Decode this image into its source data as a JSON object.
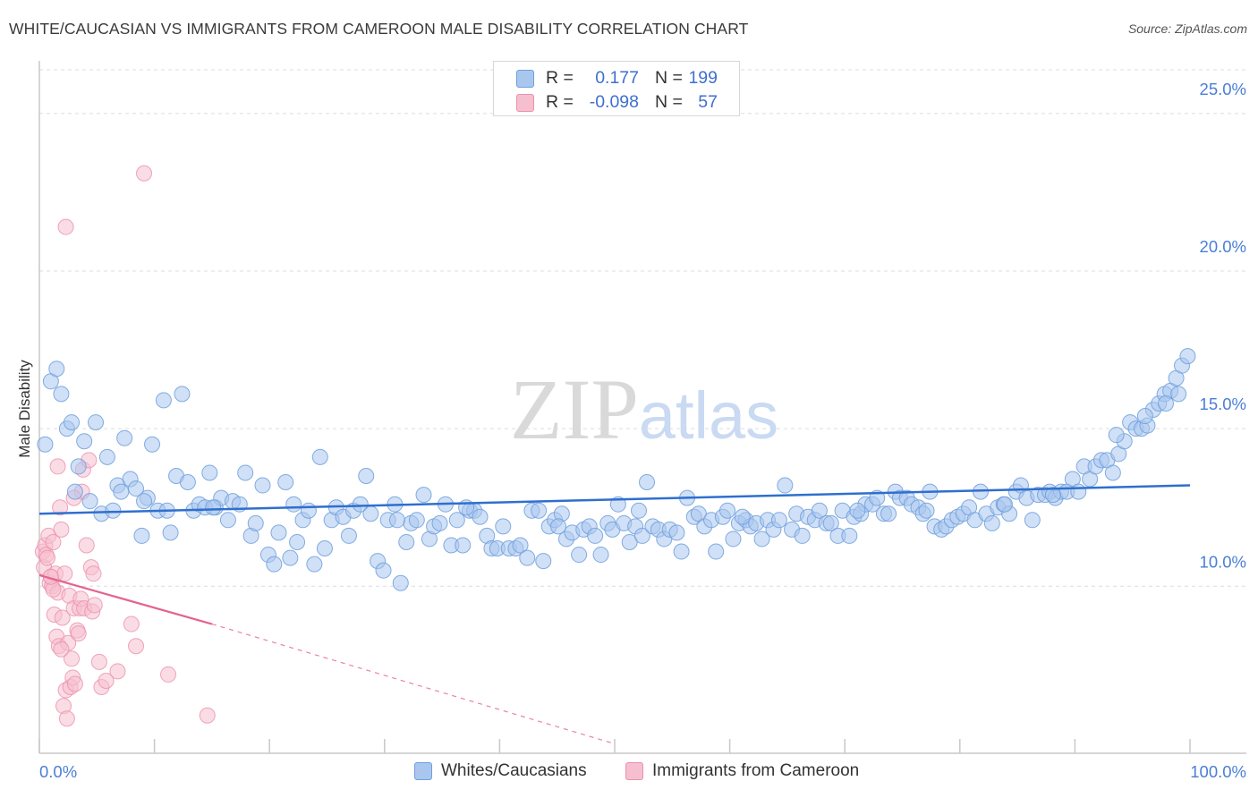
{
  "header": {
    "title": "WHITE/CAUCASIAN VS IMMIGRANTS FROM CAMEROON MALE DISABILITY CORRELATION CHART",
    "source": "Source: ZipAtlas.com"
  },
  "legend": {
    "series1": {
      "r_label": "R =",
      "r_value": "0.177",
      "n_label": "N =",
      "n_value": "199"
    },
    "series2": {
      "r_label": "R =",
      "r_value": "-0.098",
      "n_label": "N =",
      "n_value": "57"
    }
  },
  "bottom_legend": {
    "series1_label": "Whites/Caucasians",
    "series2_label": "Immigrants from Cameroon"
  },
  "watermark": {
    "part1": "ZIP",
    "part2": "atlas"
  },
  "colors": {
    "blue_fill": "#a9c7ee",
    "blue_stroke": "#6f9fdc",
    "blue_line": "#2f6fcf",
    "pink_fill": "#f6bfd0",
    "pink_stroke": "#ec8fad",
    "pink_line": "#e5638f",
    "tick_label": "#4a7fd6",
    "grid": "#dcdcdc",
    "axis": "#c8c8c8"
  },
  "chart_data": {
    "type": "scatter",
    "title": "WHITE/CAUCASIAN VS IMMIGRANTS FROM CAMEROON MALE DISABILITY CORRELATION CHART",
    "xlabel": "",
    "ylabel": "Male Disability",
    "xlim": [
      0,
      100
    ],
    "ylim": [
      4.7,
      26.5
    ],
    "x_tick_labels": {
      "left": "0.0%",
      "right": "100.0%"
    },
    "y_ticks": [
      {
        "value": 10,
        "label": "10.0%"
      },
      {
        "value": 15,
        "label": "15.0%"
      },
      {
        "value": 20,
        "label": "20.0%"
      },
      {
        "value": 25,
        "label": "25.0%"
      }
    ],
    "x_minor_ticks": [
      0,
      10,
      20,
      30,
      40,
      50,
      60,
      70,
      80,
      90,
      100
    ],
    "series": [
      {
        "name": "Whites/Caucasians",
        "r": 0.177,
        "n": 199,
        "trend": {
          "x": [
            0,
            100
          ],
          "y": [
            12.3,
            13.2
          ]
        },
        "points": [
          [
            0.5,
            14.5
          ],
          [
            1.0,
            16.5
          ],
          [
            1.5,
            16.9
          ],
          [
            1.9,
            16.1
          ],
          [
            2.4,
            15.0
          ],
          [
            2.8,
            15.2
          ],
          [
            3.4,
            13.8
          ],
          [
            3.9,
            14.6
          ],
          [
            4.4,
            12.7
          ],
          [
            4.9,
            15.2
          ],
          [
            5.4,
            12.3
          ],
          [
            5.9,
            14.1
          ],
          [
            6.4,
            12.4
          ],
          [
            6.8,
            13.2
          ],
          [
            7.4,
            14.7
          ],
          [
            7.9,
            13.4
          ],
          [
            8.4,
            13.1
          ],
          [
            8.9,
            11.6
          ],
          [
            9.4,
            12.8
          ],
          [
            9.8,
            14.5
          ],
          [
            10.3,
            12.4
          ],
          [
            10.8,
            15.9
          ],
          [
            11.4,
            11.7
          ],
          [
            11.9,
            13.5
          ],
          [
            12.4,
            16.1
          ],
          [
            12.9,
            13.3
          ],
          [
            13.4,
            12.4
          ],
          [
            13.9,
            12.6
          ],
          [
            14.4,
            12.5
          ],
          [
            14.8,
            13.6
          ],
          [
            15.3,
            12.5
          ],
          [
            15.8,
            12.8
          ],
          [
            16.4,
            12.1
          ],
          [
            16.8,
            12.7
          ],
          [
            17.4,
            12.6
          ],
          [
            17.9,
            13.6
          ],
          [
            18.4,
            11.6
          ],
          [
            18.8,
            12.0
          ],
          [
            19.4,
            13.2
          ],
          [
            19.9,
            11.0
          ],
          [
            20.4,
            10.7
          ],
          [
            20.8,
            11.7
          ],
          [
            21.4,
            13.3
          ],
          [
            21.8,
            10.9
          ],
          [
            22.4,
            11.4
          ],
          [
            22.9,
            12.1
          ],
          [
            23.4,
            12.4
          ],
          [
            23.9,
            10.7
          ],
          [
            24.4,
            14.1
          ],
          [
            24.8,
            11.2
          ],
          [
            25.4,
            12.1
          ],
          [
            25.8,
            12.5
          ],
          [
            26.4,
            12.2
          ],
          [
            26.9,
            11.6
          ],
          [
            27.3,
            12.4
          ],
          [
            27.9,
            12.6
          ],
          [
            28.4,
            13.5
          ],
          [
            28.8,
            12.3
          ],
          [
            29.4,
            10.8
          ],
          [
            29.9,
            10.5
          ],
          [
            30.3,
            12.1
          ],
          [
            30.9,
            12.6
          ],
          [
            31.4,
            10.1
          ],
          [
            31.9,
            11.4
          ],
          [
            32.3,
            12.0
          ],
          [
            32.8,
            12.1
          ],
          [
            33.4,
            12.9
          ],
          [
            33.9,
            11.5
          ],
          [
            34.3,
            11.9
          ],
          [
            34.8,
            12.0
          ],
          [
            35.3,
            12.6
          ],
          [
            35.8,
            11.3
          ],
          [
            36.3,
            12.1
          ],
          [
            36.8,
            11.3
          ],
          [
            37.4,
            12.4
          ],
          [
            37.8,
            12.4
          ],
          [
            38.3,
            12.2
          ],
          [
            38.9,
            11.6
          ],
          [
            39.3,
            11.2
          ],
          [
            39.8,
            11.2
          ],
          [
            40.3,
            11.9
          ],
          [
            40.8,
            11.2
          ],
          [
            41.4,
            11.2
          ],
          [
            41.8,
            11.3
          ],
          [
            42.4,
            10.9
          ],
          [
            42.8,
            12.4
          ],
          [
            43.4,
            12.4
          ],
          [
            43.8,
            10.8
          ],
          [
            44.3,
            11.9
          ],
          [
            44.8,
            12.1
          ],
          [
            45.4,
            12.3
          ],
          [
            45.8,
            11.5
          ],
          [
            46.3,
            11.7
          ],
          [
            46.9,
            11.0
          ],
          [
            47.3,
            11.8
          ],
          [
            47.8,
            11.9
          ],
          [
            48.3,
            11.6
          ],
          [
            48.8,
            11.0
          ],
          [
            49.4,
            12.0
          ],
          [
            49.8,
            11.8
          ],
          [
            50.3,
            12.6
          ],
          [
            50.8,
            12.0
          ],
          [
            51.3,
            11.4
          ],
          [
            51.8,
            11.9
          ],
          [
            52.4,
            11.6
          ],
          [
            52.8,
            13.3
          ],
          [
            53.3,
            11.9
          ],
          [
            53.8,
            11.8
          ],
          [
            54.3,
            11.5
          ],
          [
            54.8,
            11.8
          ],
          [
            55.4,
            11.7
          ],
          [
            55.8,
            11.1
          ],
          [
            56.3,
            12.8
          ],
          [
            56.9,
            12.2
          ],
          [
            57.3,
            12.3
          ],
          [
            57.8,
            11.9
          ],
          [
            58.4,
            12.1
          ],
          [
            58.8,
            11.1
          ],
          [
            59.4,
            12.2
          ],
          [
            59.8,
            12.4
          ],
          [
            60.3,
            11.5
          ],
          [
            60.8,
            12.0
          ],
          [
            61.4,
            12.1
          ],
          [
            61.8,
            11.9
          ],
          [
            62.3,
            12.0
          ],
          [
            62.8,
            11.5
          ],
          [
            63.3,
            12.1
          ],
          [
            63.8,
            11.8
          ],
          [
            64.3,
            12.1
          ],
          [
            64.8,
            13.2
          ],
          [
            65.4,
            11.8
          ],
          [
            65.8,
            12.3
          ],
          [
            66.3,
            11.6
          ],
          [
            66.8,
            12.2
          ],
          [
            67.4,
            12.1
          ],
          [
            67.8,
            12.4
          ],
          [
            68.4,
            12.0
          ],
          [
            68.8,
            12.0
          ],
          [
            69.4,
            11.6
          ],
          [
            69.8,
            12.4
          ],
          [
            70.4,
            11.6
          ],
          [
            70.8,
            12.2
          ],
          [
            71.4,
            12.3
          ],
          [
            71.8,
            12.6
          ],
          [
            72.4,
            12.6
          ],
          [
            72.8,
            12.8
          ],
          [
            73.4,
            12.3
          ],
          [
            73.8,
            12.3
          ],
          [
            74.4,
            13.0
          ],
          [
            74.8,
            12.8
          ],
          [
            75.4,
            12.8
          ],
          [
            75.8,
            12.6
          ],
          [
            76.4,
            12.5
          ],
          [
            76.8,
            12.3
          ],
          [
            77.4,
            13.0
          ],
          [
            77.8,
            11.9
          ],
          [
            78.4,
            11.8
          ],
          [
            78.8,
            11.9
          ],
          [
            79.3,
            12.1
          ],
          [
            79.8,
            12.2
          ],
          [
            80.3,
            12.3
          ],
          [
            80.8,
            12.5
          ],
          [
            81.3,
            12.1
          ],
          [
            81.8,
            13.0
          ],
          [
            82.3,
            12.3
          ],
          [
            82.8,
            12.0
          ],
          [
            83.3,
            12.5
          ],
          [
            83.8,
            12.6
          ],
          [
            84.3,
            12.3
          ],
          [
            84.9,
            13.0
          ],
          [
            85.3,
            13.2
          ],
          [
            85.8,
            12.8
          ],
          [
            86.3,
            12.1
          ],
          [
            86.8,
            12.9
          ],
          [
            87.4,
            12.9
          ],
          [
            87.8,
            13.0
          ],
          [
            88.3,
            12.8
          ],
          [
            88.8,
            13.0
          ],
          [
            89.3,
            13.0
          ],
          [
            89.8,
            13.4
          ],
          [
            90.3,
            13.0
          ],
          [
            90.8,
            13.8
          ],
          [
            91.3,
            13.4
          ],
          [
            91.8,
            13.8
          ],
          [
            92.3,
            14.0
          ],
          [
            92.8,
            14.0
          ],
          [
            93.3,
            13.6
          ],
          [
            93.8,
            14.2
          ],
          [
            94.3,
            14.6
          ],
          [
            94.8,
            15.2
          ],
          [
            95.3,
            15.0
          ],
          [
            95.8,
            15.0
          ],
          [
            96.3,
            15.1
          ],
          [
            96.8,
            15.6
          ],
          [
            97.3,
            15.8
          ],
          [
            97.8,
            16.1
          ],
          [
            98.3,
            16.2
          ],
          [
            98.8,
            16.6
          ],
          [
            99.3,
            17.0
          ],
          [
            99.8,
            17.3
          ],
          [
            97.9,
            15.8
          ],
          [
            99.0,
            16.1
          ],
          [
            96.1,
            15.4
          ],
          [
            93.6,
            14.8
          ],
          [
            88.1,
            12.9
          ],
          [
            83.9,
            12.6
          ],
          [
            77.1,
            12.4
          ],
          [
            71.1,
            12.4
          ],
          [
            61.1,
            12.2
          ],
          [
            52.1,
            12.4
          ],
          [
            45.1,
            11.9
          ],
          [
            37.1,
            12.5
          ],
          [
            31.1,
            12.1
          ],
          [
            22.1,
            12.6
          ],
          [
            15.1,
            12.5
          ],
          [
            11.1,
            12.4
          ],
          [
            9.1,
            12.7
          ],
          [
            7.1,
            13.0
          ],
          [
            3.1,
            13.0
          ]
        ]
      },
      {
        "name": "Immigrants from Cameroon",
        "r": -0.098,
        "n": 57,
        "trend": {
          "x": [
            0,
            15
          ],
          "y": [
            10.35,
            8.8
          ],
          "dashed_to": {
            "x": 50,
            "y": 5.0
          }
        },
        "points": [
          [
            0.3,
            11.1
          ],
          [
            0.4,
            10.6
          ],
          [
            0.5,
            11.3
          ],
          [
            0.6,
            11.0
          ],
          [
            0.7,
            10.9
          ],
          [
            0.8,
            11.6
          ],
          [
            0.9,
            10.1
          ],
          [
            1.0,
            10.3
          ],
          [
            1.1,
            10.0
          ],
          [
            1.2,
            11.4
          ],
          [
            1.3,
            9.1
          ],
          [
            1.4,
            10.4
          ],
          [
            1.5,
            8.4
          ],
          [
            1.6,
            9.8
          ],
          [
            1.7,
            8.1
          ],
          [
            1.8,
            12.5
          ],
          [
            1.9,
            11.8
          ],
          [
            2.0,
            9.0
          ],
          [
            2.1,
            6.2
          ],
          [
            2.2,
            10.4
          ],
          [
            2.3,
            6.7
          ],
          [
            2.4,
            5.8
          ],
          [
            2.5,
            8.2
          ],
          [
            2.6,
            9.7
          ],
          [
            2.7,
            6.8
          ],
          [
            2.8,
            7.7
          ],
          [
            2.9,
            7.1
          ],
          [
            3.0,
            9.3
          ],
          [
            3.1,
            6.9
          ],
          [
            3.3,
            8.6
          ],
          [
            3.5,
            9.3
          ],
          [
            3.6,
            9.6
          ],
          [
            3.7,
            13.0
          ],
          [
            3.8,
            13.7
          ],
          [
            3.9,
            9.3
          ],
          [
            4.1,
            11.3
          ],
          [
            4.3,
            14.0
          ],
          [
            4.5,
            10.6
          ],
          [
            4.6,
            9.2
          ],
          [
            4.7,
            10.4
          ],
          [
            4.8,
            9.4
          ],
          [
            5.2,
            7.6
          ],
          [
            5.4,
            6.8
          ],
          [
            1.6,
            13.8
          ],
          [
            2.3,
            21.4
          ],
          [
            3.0,
            12.8
          ],
          [
            1.2,
            9.9
          ],
          [
            1.9,
            8.0
          ],
          [
            3.4,
            8.5
          ],
          [
            5.8,
            7.0
          ],
          [
            6.8,
            7.3
          ],
          [
            8.0,
            8.8
          ],
          [
            8.4,
            8.1
          ],
          [
            9.1,
            23.1
          ],
          [
            11.2,
            7.2
          ],
          [
            14.6,
            5.9
          ],
          [
            1.0,
            10.3
          ]
        ]
      }
    ]
  }
}
